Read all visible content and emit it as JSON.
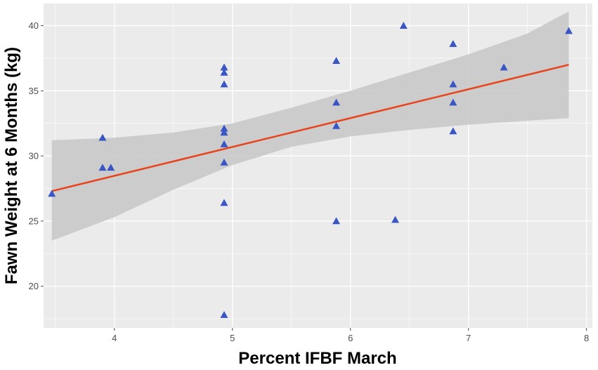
{
  "chart_data": {
    "type": "scatter",
    "title": "",
    "xlabel": "Percent IFBF March",
    "ylabel": "Fawn Weight at 6 Months (kg)",
    "xlim": [
      3.4,
      8.05
    ],
    "ylim": [
      16.8,
      41.7
    ],
    "x_ticks": [
      4,
      5,
      6,
      7,
      8
    ],
    "y_ticks": [
      20,
      25,
      30,
      35,
      40
    ],
    "x_tick_labels": [
      "4",
      "5",
      "6",
      "7",
      "8"
    ],
    "y_tick_labels": [
      "20",
      "25",
      "30",
      "35",
      "40"
    ],
    "grid": true,
    "legend": "none",
    "points": [
      {
        "x": 3.47,
        "y": 27.1
      },
      {
        "x": 3.9,
        "y": 31.4
      },
      {
        "x": 3.9,
        "y": 29.1
      },
      {
        "x": 3.97,
        "y": 29.1
      },
      {
        "x": 4.93,
        "y": 36.8
      },
      {
        "x": 4.93,
        "y": 36.4
      },
      {
        "x": 4.93,
        "y": 35.5
      },
      {
        "x": 4.93,
        "y": 32.1
      },
      {
        "x": 4.93,
        "y": 31.8
      },
      {
        "x": 4.93,
        "y": 30.9
      },
      {
        "x": 4.93,
        "y": 29.5
      },
      {
        "x": 4.93,
        "y": 26.4
      },
      {
        "x": 4.93,
        "y": 17.8
      },
      {
        "x": 5.88,
        "y": 37.3
      },
      {
        "x": 5.88,
        "y": 34.1
      },
      {
        "x": 5.88,
        "y": 32.3
      },
      {
        "x": 5.88,
        "y": 25.0
      },
      {
        "x": 6.38,
        "y": 25.1
      },
      {
        "x": 6.45,
        "y": 40.0
      },
      {
        "x": 6.87,
        "y": 38.6
      },
      {
        "x": 6.87,
        "y": 35.5
      },
      {
        "x": 6.87,
        "y": 34.1
      },
      {
        "x": 6.87,
        "y": 31.9
      },
      {
        "x": 7.3,
        "y": 36.8
      },
      {
        "x": 7.85,
        "y": 39.6
      }
    ],
    "trend_line": {
      "x": [
        3.47,
        7.85
      ],
      "y": [
        27.3,
        37.0
      ]
    },
    "confidence_band": {
      "x": [
        3.47,
        4.0,
        4.5,
        5.0,
        5.5,
        6.0,
        6.5,
        7.0,
        7.5,
        7.85
      ],
      "lower": [
        23.5,
        25.3,
        27.4,
        29.3,
        30.7,
        31.5,
        32.0,
        32.4,
        32.7,
        32.9
      ],
      "upper": [
        31.2,
        31.4,
        31.8,
        32.5,
        33.7,
        35.0,
        36.4,
        37.8,
        39.4,
        41.1
      ]
    },
    "colors": {
      "panel": "#ebebeb",
      "grid": "#ffffff",
      "points": "#3a56c5",
      "trend": "#e8431b",
      "band": "#c9c9c9"
    }
  }
}
